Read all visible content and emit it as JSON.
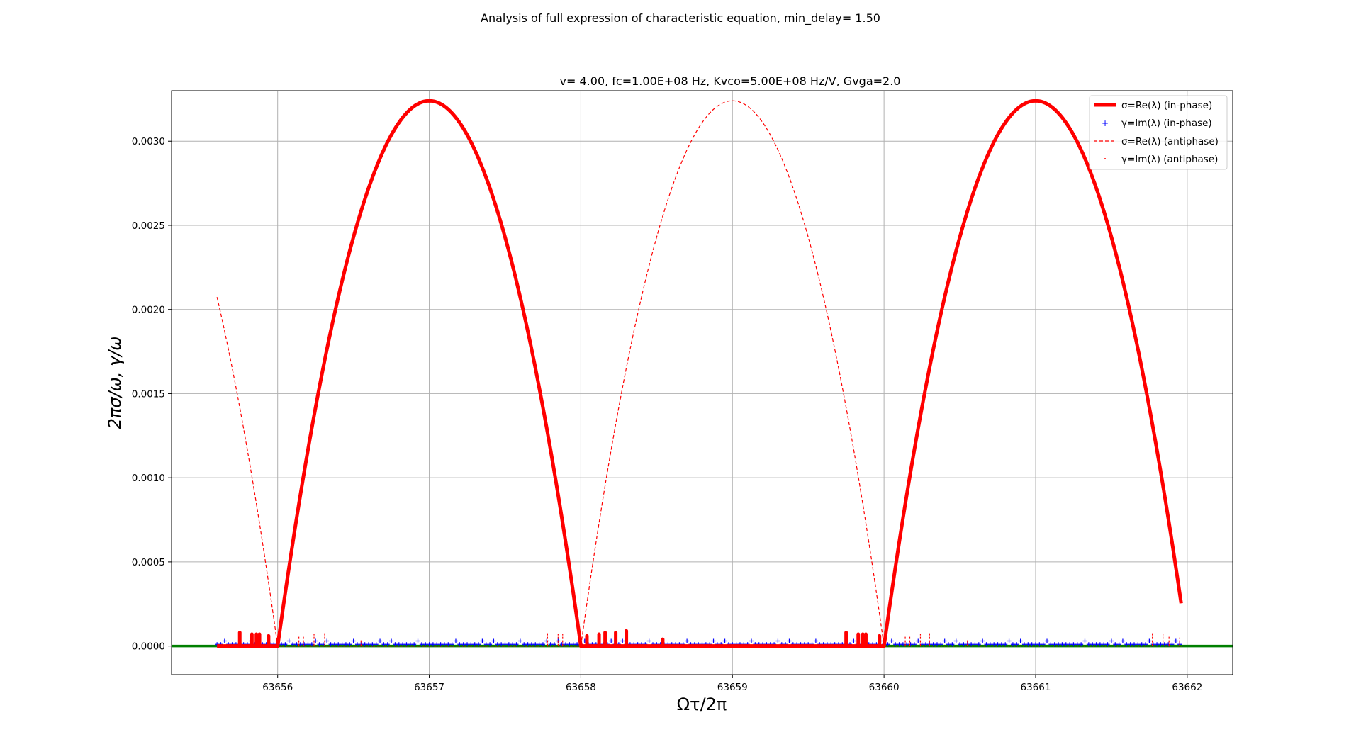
{
  "figure": {
    "suptitle": "Analysis of full expression of characteristic equation, min_delay= 1.50"
  },
  "chart_data": {
    "type": "line",
    "title": "v= 4.00, fc=1.00E+08 Hz, Kvco=5.00E+08 Hz/V, Gvga=2.0",
    "xlabel": "Ωτ/2π",
    "ylabel": "2πσ/ω, γ/ω",
    "xlim": [
      63655.3,
      63662.3
    ],
    "ylim": [
      -0.00017,
      0.0033
    ],
    "x_ticks": [
      63656,
      63657,
      63658,
      63659,
      63660,
      63661,
      63662
    ],
    "x_tick_labels": [
      "63656",
      "63657",
      "63658",
      "63659",
      "63660",
      "63661",
      "63662"
    ],
    "y_ticks": [
      0.0,
      0.0005,
      0.001,
      0.0015,
      0.002,
      0.0025,
      0.003
    ],
    "y_tick_labels": [
      "0.0000",
      "0.0005",
      "0.0010",
      "0.0015",
      "0.0020",
      "0.0025",
      "0.0030"
    ],
    "grid": true,
    "legend_position": "top-right",
    "baseline": {
      "y": 0,
      "color": "#008000"
    },
    "series": [
      {
        "name": "σ=Re(λ) (in-phase)",
        "style": "solid-thick",
        "color": "#ff0000",
        "x": [
          63655.6,
          63656.0,
          63656.25,
          63656.5,
          63656.75,
          63657.0,
          63657.25,
          63657.5,
          63657.75,
          63658.0,
          63659.0,
          63660.0,
          63660.25,
          63660.5,
          63660.75,
          63661.0,
          63661.25,
          63661.5,
          63661.75,
          63661.97
        ],
        "y": [
          0.0,
          0.0,
          0.00162,
          0.00268,
          0.00311,
          0.00324,
          0.00311,
          0.00268,
          0.00162,
          0.0,
          0.0,
          0.0,
          0.00162,
          0.00268,
          0.00311,
          0.00324,
          0.00311,
          0.00268,
          0.00162,
          0.00015
        ],
        "spikes": [
          {
            "x": 63655.75,
            "y": 8e-05
          },
          {
            "x": 63655.83,
            "y": 7e-05
          },
          {
            "x": 63655.86,
            "y": 7e-05
          },
          {
            "x": 63655.88,
            "y": 7e-05
          },
          {
            "x": 63655.94,
            "y": 6e-05
          },
          {
            "x": 63658.04,
            "y": 6e-05
          },
          {
            "x": 63658.12,
            "y": 7e-05
          },
          {
            "x": 63658.16,
            "y": 8e-05
          },
          {
            "x": 63658.23,
            "y": 8e-05
          },
          {
            "x": 63658.3,
            "y": 9e-05
          },
          {
            "x": 63658.54,
            "y": 4e-05
          },
          {
            "x": 63659.75,
            "y": 8e-05
          },
          {
            "x": 63659.83,
            "y": 7e-05
          },
          {
            "x": 63659.86,
            "y": 7e-05
          },
          {
            "x": 63659.88,
            "y": 7e-05
          },
          {
            "x": 63659.97,
            "y": 6e-05
          }
        ]
      },
      {
        "name": "γ=Im(λ) (in-phase)",
        "style": "marker-plus",
        "color": "#0000ff",
        "x_range": [
          63655.6,
          63661.97
        ],
        "y": 1e-05
      },
      {
        "name": "σ=Re(λ) (antiphase)",
        "style": "dashed-thin",
        "color": "#ff0000",
        "x": [
          63655.6,
          63655.75,
          63655.9,
          63656.0,
          63658.0,
          63658.25,
          63658.5,
          63658.75,
          63659.0,
          63659.25,
          63659.5,
          63659.75,
          63660.0,
          63661.97
        ],
        "y": [
          0.00204,
          0.00148,
          0.00072,
          0.0,
          0.0,
          0.00162,
          0.00268,
          0.00311,
          0.00324,
          0.00311,
          0.00268,
          0.00162,
          0.0,
          0.0
        ],
        "spikes": [
          {
            "x": 63656.14,
            "y": 6e-05
          },
          {
            "x": 63656.17,
            "y": 6e-05
          },
          {
            "x": 63656.24,
            "y": 7e-05
          },
          {
            "x": 63656.31,
            "y": 8e-05
          },
          {
            "x": 63656.55,
            "y": 4e-05
          },
          {
            "x": 63657.78,
            "y": 8e-05
          },
          {
            "x": 63657.85,
            "y": 7e-05
          },
          {
            "x": 63657.88,
            "y": 7e-05
          },
          {
            "x": 63660.14,
            "y": 6e-05
          },
          {
            "x": 63660.17,
            "y": 6e-05
          },
          {
            "x": 63660.24,
            "y": 7e-05
          },
          {
            "x": 63660.3,
            "y": 8e-05
          },
          {
            "x": 63660.55,
            "y": 4e-05
          },
          {
            "x": 63661.77,
            "y": 8e-05
          },
          {
            "x": 63661.84,
            "y": 7e-05
          },
          {
            "x": 63661.88,
            "y": 6e-05
          },
          {
            "x": 63661.95,
            "y": 5e-05
          }
        ]
      },
      {
        "name": "γ=Im(λ) (antiphase)",
        "style": "marker-dot",
        "color": "#ff0000",
        "x_range": [
          63655.6,
          63661.97
        ],
        "y": 0.0
      }
    ],
    "legend": [
      {
        "label": "σ=Re(λ) (in-phase)",
        "key": "thick-red-line"
      },
      {
        "label": "γ=Im(λ) (in-phase)",
        "key": "blue-plus-marker"
      },
      {
        "label": "σ=Re(λ) (antiphase)",
        "key": "dashed-red-line"
      },
      {
        "label": "γ=Im(λ) (antiphase)",
        "key": "red-dot-marker"
      }
    ]
  }
}
